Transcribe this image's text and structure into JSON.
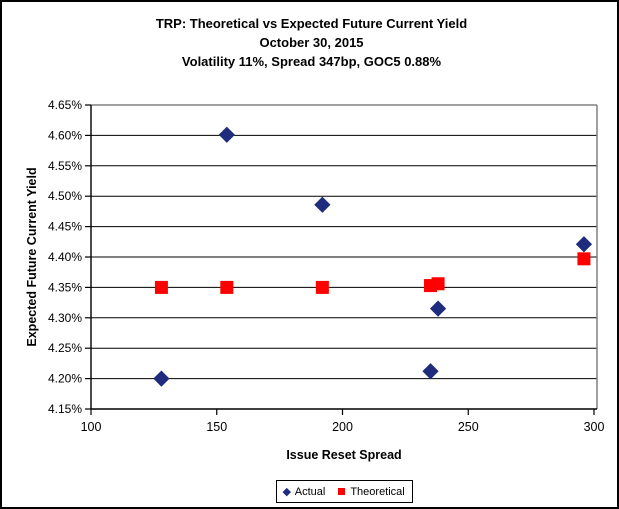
{
  "window": {
    "background": "#FFFFFF",
    "border_color": "#000000",
    "plot_border_color": "#808080",
    "gridline_color": "#000000"
  },
  "title": {
    "line1": "TRP: Theoretical vs Expected Future Current Yield",
    "line2": "October 30, 2015",
    "line3": "Volatility 11%, Spread 347bp, GOC5 0.88%"
  },
  "chart_data": {
    "type": "scatter",
    "title": "TRP: Theoretical vs Expected Future Current Yield — October 30, 2015 — Volatility 11%, Spread 347bp, GOC5 0.88%",
    "xlabel": "Issue Reset Spread",
    "ylabel": "Expected Future Current Yield",
    "xlim": [
      100,
      300
    ],
    "ylim": [
      4.15,
      4.65
    ],
    "x_ticks": [
      100,
      150,
      200,
      250,
      300
    ],
    "y_ticks": [
      4.15,
      4.2,
      4.25,
      4.3,
      4.35,
      4.4,
      4.45,
      4.5,
      4.55,
      4.6,
      4.65
    ],
    "y_tick_suffix": "%",
    "grid": "horizontal",
    "legend_position": "bottom",
    "series": [
      {
        "name": "Actual",
        "marker": "diamond",
        "color": "#1F2B7D",
        "points": [
          [
            128,
            4.2
          ],
          [
            154,
            4.601
          ],
          [
            192,
            4.486
          ],
          [
            235,
            4.212
          ],
          [
            238,
            4.315
          ],
          [
            296,
            4.421
          ]
        ]
      },
      {
        "name": "Theoretical",
        "marker": "square",
        "color": "#FF0000",
        "points": [
          [
            128,
            4.35
          ],
          [
            154,
            4.35
          ],
          [
            192,
            4.35
          ],
          [
            235,
            4.353
          ],
          [
            238,
            4.356
          ],
          [
            296,
            4.397
          ]
        ]
      }
    ]
  }
}
